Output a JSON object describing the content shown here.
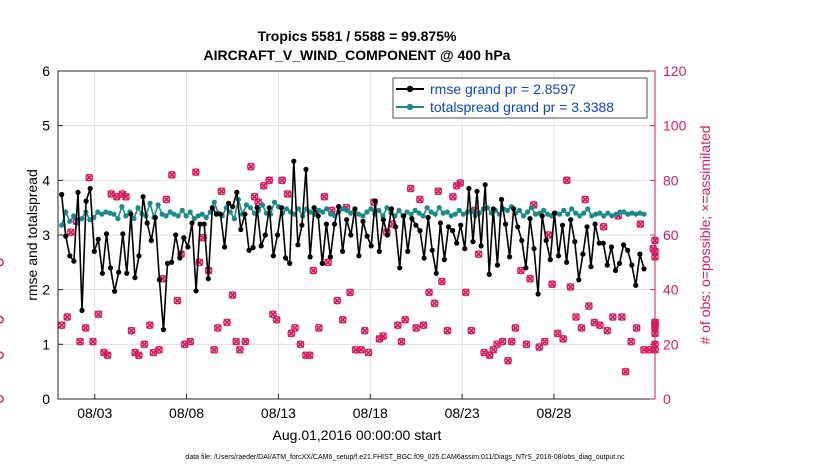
{
  "chart_data": {
    "type": "line",
    "title": "Tropics 5581 / 5588 = 99.875%",
    "subtitle": "AIRCRAFT_V_WIND_COMPONENT @ 400 hPa",
    "xlabel": "Aug.01,2016 00:00:00 start",
    "ylabel_left": "rmse and totalspread",
    "ylabel_right": "# of obs: o=possible; ×=assimilated",
    "footer": "data file: /Users/raeder/DAI/ATM_forcXX/CAM6_setup/f.e21.FHIST_BGC.f09_025.CAM6assim.011/Diags_NTrS_2016-08/obs_diag_output.nc",
    "xlim": [
      1,
      33.5
    ],
    "ylim_left": [
      0,
      6
    ],
    "ylim_right": [
      0,
      120
    ],
    "x_ticks": [
      3,
      8,
      13,
      18,
      23,
      28
    ],
    "x_tick_labels": [
      "08/03",
      "08/08",
      "08/13",
      "08/18",
      "08/23",
      "08/28"
    ],
    "y_ticks_left": [
      "0",
      "1",
      "2",
      "3",
      "4",
      "5",
      "6"
    ],
    "y_ticks_right": [
      "0",
      "20",
      "40",
      "60",
      "80",
      "100",
      "120"
    ],
    "grid": true,
    "legend_position": "top-right",
    "series": [
      {
        "name": "rmse grand pr = 2.8597",
        "axis": "left",
        "color": "#000000",
        "marker": "circle",
        "values": [
          3.74,
          2.98,
          2.62,
          2.52,
          3.78,
          1.62,
          3.62,
          3.85,
          2.7,
          2.92,
          2.3,
          3.02,
          2.4,
          1.97,
          2.32,
          3.02,
          2.3,
          3.38,
          2.22,
          2.62,
          3.7,
          3.22,
          2.9,
          3.32,
          2.18,
          1.27,
          2.48,
          2.5,
          3.0,
          2.58,
          2.95,
          2.78,
          3.22,
          1.98,
          3.2,
          3.2,
          2.2,
          3.5,
          3.38,
          3.38,
          2.78,
          3.58,
          3.52,
          3.78,
          3.1,
          3.38,
          2.72,
          2.77,
          3.5,
          2.8,
          3.0,
          3.5,
          2.62,
          3.0,
          3.5,
          2.58,
          2.48,
          4.35,
          2.82,
          3.18,
          4.2,
          2.6,
          3.5,
          3.35,
          2.48,
          3.2,
          2.6,
          3.2,
          3.52,
          2.7,
          3.28,
          3.0,
          3.48,
          2.62,
          3.25,
          2.98,
          2.8,
          3.62,
          2.7,
          3.28,
          3.0,
          3.48,
          3.15,
          2.4,
          3.35,
          2.7,
          3.3,
          3.18,
          3.08,
          2.58,
          3.32,
          2.72,
          2.3,
          3.22,
          2.55,
          3.15,
          3.08,
          2.85,
          3.18,
          2.75,
          3.85,
          2.88,
          3.8,
          2.8,
          3.92,
          2.28,
          3.48,
          2.45,
          3.65,
          3.2,
          2.6,
          3.48,
          3.15,
          2.9,
          2.4,
          3.3,
          2.75,
          1.92,
          3.35,
          2.9,
          2.55,
          3.4,
          2.62,
          3.18,
          2.5,
          3.28,
          2.88,
          2.18,
          2.65,
          3.15,
          2.42,
          3.2,
          2.85,
          2.85,
          2.45,
          2.78,
          2.35,
          2.48,
          2.82,
          2.72,
          2.45,
          2.08,
          2.65,
          2.38
        ]
      },
      {
        "name": "totalspread grand pr = 3.3388",
        "axis": "left",
        "color": "#1a8a8a",
        "marker": "circle",
        "values": [
          3.18,
          3.42,
          3.25,
          3.35,
          3.22,
          3.3,
          3.42,
          3.28,
          3.32,
          3.42,
          3.38,
          3.42,
          3.4,
          3.38,
          3.3,
          3.52,
          3.35,
          3.42,
          3.3,
          3.5,
          3.38,
          3.35,
          3.58,
          3.32,
          3.55,
          3.38,
          3.35,
          3.42,
          3.38,
          3.35,
          3.45,
          3.35,
          3.42,
          3.3,
          3.35,
          3.38,
          3.32,
          3.42,
          3.6,
          3.4,
          3.35,
          3.5,
          3.42,
          3.3,
          3.65,
          3.38,
          3.55,
          3.5,
          3.4,
          3.45,
          3.55,
          3.4,
          3.38,
          3.6,
          3.52,
          3.4,
          3.48,
          3.42,
          3.38,
          3.48,
          3.35,
          3.48,
          3.42,
          3.38,
          3.45,
          3.42,
          3.48,
          3.38,
          3.35,
          3.42,
          3.48,
          3.45,
          3.4,
          3.45,
          3.38,
          3.35,
          3.42,
          3.48,
          3.38,
          3.45,
          3.35,
          3.5,
          3.4,
          3.35,
          3.45,
          3.35,
          3.42,
          3.38,
          3.45,
          3.4,
          3.35,
          3.5,
          3.42,
          3.38,
          3.5,
          3.4,
          3.42,
          3.35,
          3.38,
          3.45,
          3.38,
          3.42,
          3.45,
          3.35,
          3.4,
          3.48,
          3.5,
          3.4,
          3.45,
          3.38,
          3.48,
          3.45,
          3.52,
          3.4,
          3.45,
          3.35,
          3.42,
          3.5,
          3.38,
          3.4,
          3.45,
          3.38,
          3.35,
          3.4,
          3.38,
          3.45,
          3.38,
          3.48,
          3.4,
          3.35,
          3.4,
          3.48,
          3.35,
          3.38,
          3.4,
          3.35,
          3.4,
          3.35,
          3.38,
          3.42,
          3.42,
          3.38,
          3.4,
          3.38,
          3.4,
          3.38
        ]
      },
      {
        "name": "# of obs possible",
        "axis": "right",
        "color": "#d81b60",
        "marker": "o",
        "values": [
          27,
          30,
          61,
          65,
          21,
          26,
          81,
          21,
          31,
          17,
          16,
          75,
          74,
          75,
          74,
          25,
          17,
          16,
          20,
          27,
          17,
          18,
          44,
          73,
          82,
          36,
          53,
          20,
          21,
          83,
          50,
          59,
          47,
          18,
          26,
          76,
          28,
          38,
          21,
          18,
          21,
          85,
          74,
          72,
          78,
          80,
          31,
          29,
          80,
          75,
          24,
          26,
          20,
          16,
          16,
          47,
          26,
          74,
          50,
          69,
          36,
          29,
          70,
          39,
          18,
          18,
          25,
          17,
          72,
          22,
          23,
          61,
          64,
          27,
          21,
          29,
          77,
          26,
          73,
          27,
          39,
          35,
          76,
          43,
          25,
          74,
          78,
          79,
          39,
          25,
          69,
          53,
          17,
          16,
          18,
          20,
          21,
          14,
          21,
          26,
          47,
          20,
          44,
          71,
          19,
          21,
          60,
          42,
          24,
          22,
          80,
          41,
          30,
          26,
          73,
          34,
          28,
          27,
          63,
          25,
          30,
          67,
          30,
          10,
          21,
          26,
          64,
          18,
          18,
          55,
          28,
          18,
          28,
          27,
          26,
          52,
          20,
          24,
          58,
          54,
          29,
          16,
          50,
          0
        ]
      },
      {
        "name": "# of obs assimilated",
        "axis": "right",
        "color": "#d81b60",
        "marker": "x",
        "values": [
          27,
          30,
          61,
          65,
          21,
          26,
          81,
          21,
          31,
          17,
          16,
          75,
          74,
          75,
          74,
          25,
          17,
          16,
          20,
          27,
          17,
          18,
          44,
          73,
          82,
          36,
          53,
          20,
          21,
          83,
          50,
          59,
          47,
          18,
          26,
          76,
          28,
          38,
          21,
          18,
          21,
          85,
          74,
          72,
          78,
          80,
          31,
          29,
          80,
          75,
          24,
          26,
          20,
          16,
          16,
          47,
          26,
          74,
          50,
          69,
          36,
          29,
          70,
          39,
          18,
          18,
          25,
          17,
          72,
          22,
          23,
          61,
          64,
          27,
          21,
          29,
          77,
          26,
          73,
          27,
          39,
          35,
          76,
          43,
          25,
          74,
          78,
          79,
          39,
          25,
          69,
          53,
          17,
          16,
          18,
          20,
          21,
          14,
          21,
          26,
          47,
          20,
          44,
          71,
          19,
          21,
          60,
          42,
          24,
          22,
          80,
          41,
          30,
          26,
          73,
          34,
          28,
          27,
          63,
          25,
          30,
          67,
          30,
          10,
          21,
          26,
          64,
          18,
          18,
          55,
          28,
          18,
          28,
          27,
          26,
          52,
          20,
          24,
          58,
          54,
          29,
          16,
          50,
          0
        ]
      }
    ],
    "obs_x": [
      1.2,
      1.5,
      1.7,
      2.0,
      2.2,
      2.5,
      2.7,
      2.9,
      3.2,
      3.5,
      3.7,
      3.9,
      4.2,
      4.5,
      4.7,
      5.0,
      5.2,
      5.4,
      5.7,
      6.0,
      6.2,
      6.5,
      6.7,
      6.9,
      7.2,
      7.5,
      7.7,
      7.9,
      8.2,
      8.5,
      8.7,
      8.9,
      9.2,
      9.5,
      9.7,
      9.9,
      10.2,
      10.5,
      10.7,
      10.9,
      11.2,
      11.5,
      11.7,
      11.9,
      12.2,
      12.5,
      12.7,
      12.9,
      13.2,
      13.5,
      13.7,
      13.9,
      14.2,
      14.5,
      14.7,
      14.9,
      15.2,
      15.5,
      15.7,
      15.9,
      16.2,
      16.5,
      16.7,
      16.9,
      17.2,
      17.5,
      17.7,
      17.9,
      18.2,
      18.5,
      18.7,
      18.9,
      19.2,
      19.5,
      19.7,
      19.9,
      20.2,
      20.5,
      20.7,
      20.9,
      21.2,
      21.5,
      21.7,
      21.9,
      22.2,
      22.5,
      22.7,
      22.9,
      23.2,
      23.5,
      23.7,
      23.9,
      24.2,
      24.5,
      24.7,
      24.9,
      25.2,
      25.5,
      25.7,
      25.9,
      26.2,
      26.5,
      26.7,
      26.9,
      27.2,
      27.5,
      27.7,
      27.9,
      28.2,
      28.5,
      28.7,
      28.9,
      29.2,
      29.5,
      29.7,
      29.9,
      30.2,
      30.5,
      30.7,
      30.9,
      31.2,
      31.5,
      31.7,
      31.9,
      32.2,
      32.5,
      32.7,
      32.9,
      33.2,
      33.4,
      33.5,
      33.5,
      33.5,
      33.5,
      33.5,
      33.5,
      33.5,
      33.5,
      33.5,
      33.5
    ]
  }
}
